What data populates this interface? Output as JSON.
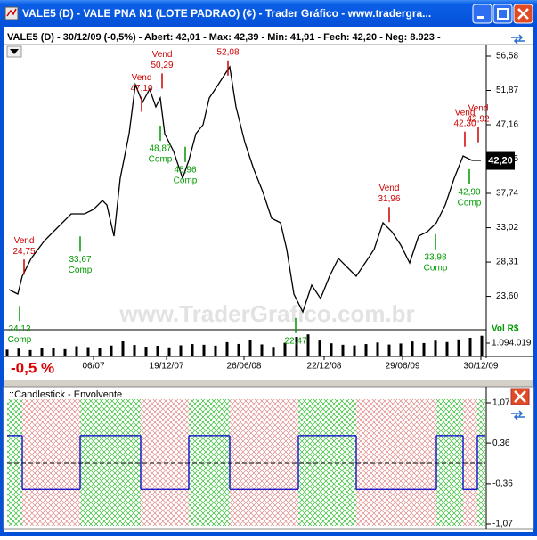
{
  "window": {
    "title": "VALE5 (D) - VALE PNA N1 (LOTE PADRAO) (¢) - Trader Gráfico - www.tradergra..."
  },
  "chart_data": [
    {
      "type": "line",
      "title": "VALE5 (D) - 30/12/09 (-0,5%) - Abert: 42,01 - Max: 42,39 - Min: 41,91 - Fech: 42,20 - Neg: 8.923 -",
      "watermark": "www.TraderGrafico.com.br",
      "change_label": "-0,5 %",
      "last_price": 42.2,
      "last_price_label": "42,20",
      "x": [
        2,
        12,
        17,
        27,
        42,
        57,
        72,
        87,
        97,
        107,
        112,
        120,
        127,
        137,
        144,
        152,
        160,
        167,
        172,
        177,
        187,
        197,
        204,
        212,
        220,
        227,
        237,
        250,
        257,
        267,
        277,
        287,
        297,
        307,
        314,
        322,
        332,
        342,
        352,
        362,
        372,
        382,
        392,
        402,
        412,
        422,
        432,
        442,
        452,
        462,
        472,
        482,
        492,
        502,
        512,
        522,
        532
      ],
      "series": [
        {
          "color": "#000000",
          "values": [
            24.53,
            23.92,
            26.36,
            28.81,
            31.26,
            33.09,
            34.93,
            34.93,
            35.54,
            36.76,
            36.15,
            31.87,
            39.82,
            45.94,
            52.67,
            50.22,
            52.05,
            49.61,
            50.83,
            45.94,
            43.49,
            39.82,
            42.27,
            45.94,
            47.16,
            50.83,
            52.67,
            55.11,
            49.61,
            44.71,
            41.04,
            37.99,
            34.31,
            33.7,
            30.03,
            23.92,
            21.47,
            25.14,
            23.3,
            26.36,
            28.81,
            27.59,
            26.36,
            28.2,
            30.03,
            33.7,
            32.48,
            30.64,
            28.2,
            31.87,
            32.48,
            33.7,
            36.15,
            39.82,
            42.88,
            42.27,
            42.27
          ]
        }
      ],
      "xlim": [
        0,
        537
      ],
      "xticks": [
        {
          "value": 97,
          "label": "06/07"
        },
        {
          "value": 179,
          "label": "19/12/07"
        },
        {
          "value": 266,
          "label": "26/06/08"
        },
        {
          "value": 356,
          "label": "22/12/08"
        },
        {
          "value": 444,
          "label": "29/06/09"
        },
        {
          "value": 532,
          "label": "30/12/09"
        }
      ],
      "ylim": [
        19.02,
        57.56
      ],
      "yticks": [
        {
          "value": 23.6,
          "label": "23,60"
        },
        {
          "value": 28.31,
          "label": "28,31"
        },
        {
          "value": 33.02,
          "label": "33,02"
        },
        {
          "value": 37.74,
          "label": "37,74"
        },
        {
          "value": 42.45,
          "label": "42,45"
        },
        {
          "value": 47.16,
          "label": "47,16"
        },
        {
          "value": 51.87,
          "label": "51,87"
        },
        {
          "value": 56.58,
          "label": "56,58"
        }
      ],
      "annotations": [
        {
          "signal": "Vend",
          "x": 19,
          "price": 24.75,
          "label": "24,75",
          "color": "#cc0000",
          "position": "above"
        },
        {
          "signal": "Comp",
          "x": 14,
          "price": 24.13,
          "label": "24,13",
          "color": "#009900",
          "position": "below"
        },
        {
          "signal": "Comp",
          "x": 82,
          "price": 33.67,
          "label": "33,67",
          "color": "#009900",
          "position": "below"
        },
        {
          "signal": "Vend",
          "x": 151,
          "price": 47.1,
          "label": "47,10",
          "color": "#cc0000",
          "position": "above"
        },
        {
          "signal": "Vend",
          "x": 174,
          "price": 50.29,
          "label": "50,29",
          "color": "#cc0000",
          "position": "above"
        },
        {
          "signal": "Comp",
          "x": 172,
          "price": 48.87,
          "label": "48,87",
          "color": "#009900",
          "position": "below"
        },
        {
          "signal": "Comp",
          "x": 200,
          "price": 45.96,
          "label": "45,96",
          "color": "#009900",
          "position": "below"
        },
        {
          "x": 248,
          "price": 52.08,
          "label": "52,08",
          "color": "#cc0000",
          "position": "above"
        },
        {
          "x": 324,
          "price": 22.47,
          "label": "22,47",
          "color": "#009900",
          "position": "below"
        },
        {
          "signal": "Vend",
          "x": 429,
          "price": 31.96,
          "label": "31,96",
          "color": "#cc0000",
          "position": "above"
        },
        {
          "signal": "Comp",
          "x": 481,
          "price": 33.98,
          "label": "33,98",
          "color": "#009900",
          "position": "below"
        },
        {
          "signal": "Comp",
          "x": 519,
          "price": 42.9,
          "label": "42,90",
          "color": "#009900",
          "position": "below"
        },
        {
          "signal": "Vend",
          "x": 514,
          "price": 42.3,
          "label": "42,30",
          "color": "#cc0000",
          "position": "above"
        },
        {
          "signal": "Vend",
          "x": 529,
          "price": 42.92,
          "label": "42,92",
          "color": "#cc0000",
          "position": "above"
        }
      ],
      "volume": {
        "label": "Vol R$",
        "color": "#000000",
        "x": [
          0,
          13,
          26,
          39,
          52,
          65,
          78,
          91,
          104,
          117,
          130,
          143,
          156,
          169,
          182,
          195,
          208,
          221,
          234,
          247,
          260,
          273,
          286,
          299,
          312,
          325,
          338,
          351,
          364,
          377,
          390,
          403,
          416,
          429,
          442,
          455,
          468,
          481,
          494,
          507,
          520,
          533
        ],
        "values": [
          520000,
          610000,
          480000,
          700000,
          650000,
          560000,
          820000,
          740000,
          690000,
          880000,
          1250000,
          930000,
          780000,
          860000,
          720000,
          900000,
          1010000,
          950000,
          870000,
          1180000,
          1020000,
          1390000,
          980000,
          760000,
          1120000,
          1640000,
          1860000,
          1320000,
          1080000,
          950000,
          890000,
          1010000,
          1150000,
          970000,
          1060000,
          1240000,
          1100000,
          1310000,
          1190000,
          1420000,
          1560000,
          1740000
        ],
        "ylim": [
          0,
          2188038
        ],
        "yticks": [
          {
            "value": 1094019,
            "label": "1.094.019"
          }
        ]
      }
    },
    {
      "type": "step",
      "title": "::Candlestick - Envolvente",
      "x": [
        0,
        17,
        82,
        150,
        204,
        250,
        327,
        392,
        482,
        512,
        528
      ],
      "values": [
        0.49,
        -0.46,
        0.49,
        -0.46,
        0.49,
        -0.46,
        0.49,
        -0.46,
        0.49,
        -0.46,
        0.49
      ],
      "color": "#0000cc",
      "up_color": "#33bb33",
      "down_color": "#dd8888",
      "xlim": [
        0,
        537
      ],
      "ylim": [
        -1.07,
        1.07
      ],
      "yticks": [
        {
          "value": -1.07,
          "label": "-1,07"
        },
        {
          "value": -0.36,
          "label": "-0,36"
        },
        {
          "value": 0.36,
          "label": "0,36"
        },
        {
          "value": 1.07,
          "label": "1,07"
        }
      ],
      "zero_line": true
    }
  ]
}
